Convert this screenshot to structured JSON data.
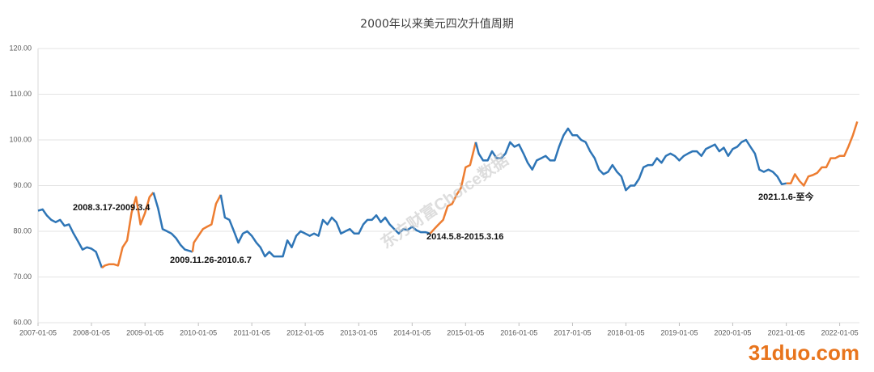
{
  "chart_data": {
    "type": "line",
    "title": "2000年以来美元四次升值周期",
    "xlim": [
      "2007-01-05",
      "2022-05-20"
    ],
    "xticks": [
      "2007-01-05",
      "2008-01-05",
      "2009-01-05",
      "2010-01-05",
      "2011-01-05",
      "2012-01-05",
      "2013-01-05",
      "2014-01-05",
      "2015-01-05",
      "2016-01-05",
      "2017-01-05",
      "2018-01-05",
      "2019-01-05",
      "2020-01-05",
      "2021-01-05",
      "2022-01-05"
    ],
    "ylim": [
      60,
      120
    ],
    "yticks": [
      {
        "value": 60,
        "label": "60.00"
      },
      {
        "value": 70,
        "label": "70.00"
      },
      {
        "value": 80,
        "label": "80.00"
      },
      {
        "value": 90,
        "label": "90.00"
      },
      {
        "value": 100,
        "label": "100.00"
      },
      {
        "value": 110,
        "label": "110.00"
      },
      {
        "value": 120,
        "label": "120.00"
      }
    ],
    "grid": true,
    "series": [
      {
        "color": "#2e75b6",
        "x": [
          "2007-01-05",
          "2007-02-05",
          "2007-03-05",
          "2007-04-05",
          "2007-05-05",
          "2007-06-05",
          "2007-07-05",
          "2007-08-05",
          "2007-09-05",
          "2007-10-05",
          "2007-11-05",
          "2007-12-05",
          "2008-01-05",
          "2008-02-05",
          "2008-03-17"
        ],
        "values": [
          84.5,
          84.8,
          83.5,
          82.5,
          82.0,
          82.5,
          81.2,
          81.5,
          79.5,
          77.8,
          76.0,
          76.5,
          76.2,
          75.5,
          72.0
        ]
      },
      {
        "color": "#ed7d31",
        "x": [
          "2008-03-17",
          "2008-04-05",
          "2008-05-05",
          "2008-06-05",
          "2008-07-05",
          "2008-08-05",
          "2008-09-05",
          "2008-10-05",
          "2008-11-05",
          "2008-12-05",
          "2009-01-05",
          "2009-02-05",
          "2009-03-04"
        ],
        "values": [
          72.0,
          72.5,
          72.8,
          72.8,
          72.5,
          76.5,
          78.0,
          84.0,
          87.5,
          81.5,
          84.0,
          87.5,
          88.5
        ]
      },
      {
        "color": "#2e75b6",
        "x": [
          "2009-03-04",
          "2009-04-05",
          "2009-05-05",
          "2009-06-05",
          "2009-07-05",
          "2009-08-05",
          "2009-09-05",
          "2009-10-05",
          "2009-11-26"
        ],
        "values": [
          88.5,
          85,
          80.5,
          80,
          79.5,
          78.5,
          77,
          76,
          75.5
        ]
      },
      {
        "color": "#ed7d31",
        "x": [
          "2009-11-26",
          "2009-12-05",
          "2010-01-05",
          "2010-02-05",
          "2010-03-05",
          "2010-04-05",
          "2010-05-05",
          "2010-06-07"
        ],
        "values": [
          75.5,
          77.5,
          79,
          80.5,
          81,
          81.5,
          86,
          88
        ]
      },
      {
        "color": "#2e75b6",
        "x": [
          "2010-06-07",
          "2010-07-05",
          "2010-08-05",
          "2010-09-05",
          "2010-10-05",
          "2010-11-05",
          "2010-12-05",
          "2011-01-05",
          "2011-02-05",
          "2011-03-05",
          "2011-04-05",
          "2011-05-05",
          "2011-06-05",
          "2011-07-05",
          "2011-08-05",
          "2011-09-05",
          "2011-10-05",
          "2011-11-05",
          "2011-12-05",
          "2012-01-05",
          "2012-02-05",
          "2012-03-05",
          "2012-04-05",
          "2012-05-05",
          "2012-06-05",
          "2012-07-05",
          "2012-08-05",
          "2012-09-05",
          "2012-10-05",
          "2012-11-05",
          "2012-12-05",
          "2013-01-05",
          "2013-02-05",
          "2013-03-05",
          "2013-04-05",
          "2013-05-05",
          "2013-06-05",
          "2013-07-05",
          "2013-08-05",
          "2013-09-05",
          "2013-10-05",
          "2013-11-05",
          "2013-12-05",
          "2014-01-05",
          "2014-02-05",
          "2014-03-05",
          "2014-04-05",
          "2014-05-08"
        ],
        "values": [
          88,
          83,
          82.5,
          80,
          77.5,
          79.5,
          80,
          79,
          77.5,
          76.5,
          74.5,
          75.5,
          74.5,
          74.5,
          74.5,
          78,
          76.5,
          79,
          80,
          79.5,
          79,
          79.5,
          79,
          82.5,
          81.5,
          83,
          82,
          79.5,
          80,
          80.5,
          79.5,
          79.5,
          81.5,
          82.5,
          82.5,
          83.5,
          82,
          83,
          81.5,
          80.5,
          79.5,
          80.5,
          80.3,
          81,
          80.2,
          79.8,
          79.8,
          79.5
        ]
      },
      {
        "color": "#ed7d31",
        "x": [
          "2014-05-08",
          "2014-06-05",
          "2014-07-05",
          "2014-08-05",
          "2014-09-05",
          "2014-10-05",
          "2014-11-05",
          "2014-12-05",
          "2015-01-05",
          "2015-02-05",
          "2015-03-16"
        ],
        "values": [
          79.5,
          80.5,
          81.5,
          82.5,
          85.5,
          86,
          88,
          89.5,
          94,
          94.5,
          99.5
        ]
      },
      {
        "color": "#2e75b6",
        "x": [
          "2015-03-16",
          "2015-04-05",
          "2015-05-05",
          "2015-06-05",
          "2015-07-05",
          "2015-08-05",
          "2015-09-05",
          "2015-10-05",
          "2015-11-05",
          "2015-12-05",
          "2016-01-05",
          "2016-02-05",
          "2016-03-05",
          "2016-04-05",
          "2016-05-05",
          "2016-06-05",
          "2016-07-05",
          "2016-08-05",
          "2016-09-05",
          "2016-10-05",
          "2016-11-05",
          "2016-12-05",
          "2017-01-05",
          "2017-02-05",
          "2017-03-05",
          "2017-04-05",
          "2017-05-05",
          "2017-06-05",
          "2017-07-05",
          "2017-08-05",
          "2017-09-05",
          "2017-10-05",
          "2017-11-05",
          "2017-12-05",
          "2018-01-05",
          "2018-02-05",
          "2018-03-05",
          "2018-04-05",
          "2018-05-05",
          "2018-06-05",
          "2018-07-05",
          "2018-08-05",
          "2018-09-05",
          "2018-10-05",
          "2018-11-05",
          "2018-12-05",
          "2019-01-05",
          "2019-02-05",
          "2019-03-05",
          "2019-04-05",
          "2019-05-05",
          "2019-06-05",
          "2019-07-05",
          "2019-08-05",
          "2019-09-05",
          "2019-10-05",
          "2019-11-05",
          "2019-12-05",
          "2020-01-05",
          "2020-02-05",
          "2020-03-05",
          "2020-04-05",
          "2020-05-05",
          "2020-06-05",
          "2020-07-05",
          "2020-08-05",
          "2020-09-05",
          "2020-10-05",
          "2020-11-05",
          "2020-12-05",
          "2021-01-06"
        ],
        "values": [
          99.5,
          97,
          95.5,
          95.5,
          97.5,
          96,
          96,
          97,
          99.5,
          98.5,
          99,
          97,
          95,
          93.5,
          95.5,
          96,
          96.5,
          95.5,
          95.5,
          98.5,
          101,
          102.5,
          101,
          101,
          100,
          99.5,
          97.5,
          96,
          93.5,
          92.5,
          93,
          94.5,
          93,
          92,
          89,
          90,
          90,
          91.5,
          94,
          94.5,
          94.5,
          96,
          95,
          96.5,
          97,
          96.5,
          95.5,
          96.5,
          97,
          97.5,
          97.5,
          96.5,
          98,
          98.5,
          99,
          97.5,
          98.3,
          96.5,
          98,
          98.5,
          99.5,
          100,
          98.5,
          97,
          93.5,
          93,
          93.5,
          93,
          92,
          90.3,
          90.5
        ]
      },
      {
        "color": "#ed7d31",
        "x": [
          "2021-01-06",
          "2021-02-05",
          "2021-03-05",
          "2021-04-05",
          "2021-05-05",
          "2021-06-05",
          "2021-07-05",
          "2021-08-05",
          "2021-09-05",
          "2021-10-05",
          "2021-11-05",
          "2021-12-05",
          "2022-01-05",
          "2022-02-05",
          "2022-03-05",
          "2022-04-05",
          "2022-05-05"
        ],
        "values": [
          90.5,
          90.5,
          92.5,
          91,
          90,
          92,
          92.3,
          92.8,
          94,
          94,
          96,
          96,
          96.5,
          96.5,
          98.5,
          101,
          104
        ]
      }
    ],
    "annotations": [
      "2008.3.17-2009.3.4",
      "2009.11.26-2010.6.7",
      "2014.5.8-2015.3.16",
      "2021.1.6-至今"
    ],
    "watermarks": [
      "东方财富Choice数据",
      "31duo.com"
    ]
  }
}
